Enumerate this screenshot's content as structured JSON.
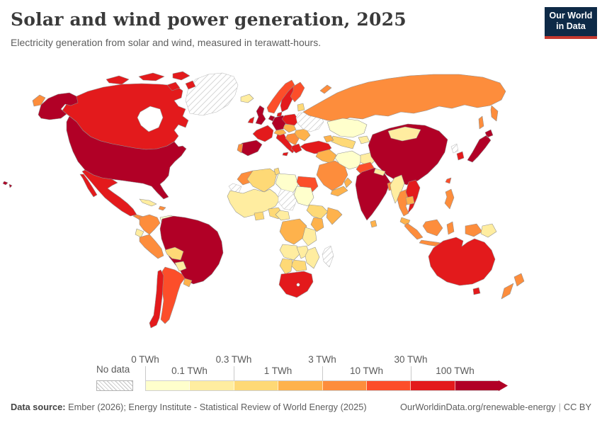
{
  "header": {
    "title": "Solar and wind power generation, 2025",
    "subtitle": "Electricity generation from solar and wind, measured in terawatt-hours."
  },
  "logo": {
    "line1": "Our World",
    "line2": "in Data",
    "bg_color": "#0e2a47",
    "accent_color": "#c5392f"
  },
  "chart_data": {
    "type": "choropleth_map",
    "title": "Solar and wind power generation, 2025",
    "unit": "terawatt-hours (TWh)",
    "legend": {
      "no_data_label": "No data",
      "tick_labels": [
        "0 TWh",
        "0.1 TWh",
        "0.3 TWh",
        "1 TWh",
        "3 TWh",
        "10 TWh",
        "30 TWh",
        "100 TWh"
      ],
      "colors": [
        "#ffffcc",
        "#ffeda0",
        "#fed976",
        "#feb24c",
        "#fd8d3c",
        "#fc4e2a",
        "#e31a1c",
        "#b10026"
      ],
      "bin_ranges": [
        "0-0.1 TWh",
        "0.1-0.3 TWh",
        "0.3-1 TWh",
        "1-3 TWh",
        "3-10 TWh",
        "10-30 TWh",
        "30-100 TWh",
        "100+ TWh"
      ]
    },
    "regions": {
      "greenland": "no_data",
      "canada": 6,
      "canada_arctic_islands": 6,
      "alaska": 7,
      "united_states": 7,
      "hawaii": 7,
      "mexico": 6,
      "central_america": 4,
      "nicaragua": 2,
      "cuba": 1,
      "hispaniola": 4,
      "colombia": 4,
      "venezuela": 0,
      "guyanas": 1,
      "ecuador": 1,
      "peru": 4,
      "brazil": 7,
      "bolivia": 2,
      "paraguay": 1,
      "argentina": 5,
      "chile": 6,
      "uruguay": 3,
      "iceland": 1,
      "united_kingdom": 7,
      "ireland": 6,
      "norway": 5,
      "sweden": 6,
      "finland": 5,
      "denmark": 6,
      "baltics": 2,
      "germany": 7,
      "benelux": 7,
      "france": 6,
      "spain": 7,
      "portugal": 4,
      "italy": 6,
      "sicily": 6,
      "alpine_states": 3,
      "czechia_hungary": 3,
      "poland": 6,
      "balkans": 4,
      "greece": 6,
      "romania_bulgaria": 3,
      "ukraine_belarus": "no_data",
      "turkey": 6,
      "russia": 4,
      "kazakhstan": 0,
      "uzbekistan_turkmenistan": 2,
      "kyrgyzstan_tajikistan": 1,
      "caucasus": 3,
      "syria_iraq": 3,
      "saudi_arabia": 4,
      "yemen": 3,
      "oman": 3,
      "iran": 0,
      "afghanistan": 1,
      "pakistan": 5,
      "china": 7,
      "mongolia": 1,
      "india": 7,
      "nepal": 1,
      "bangladesh": 4,
      "myanmar": 1,
      "thailand": 4,
      "vietnam": 6,
      "laos_cambodia": 3,
      "malaysia": 3,
      "sri_lanka": 3,
      "indonesia": 4,
      "papua_new_guinea": 1,
      "philippines": 4,
      "taiwan": 5,
      "north_korea": "no_data",
      "south_korea": 6,
      "japan": 7,
      "morocco": 4,
      "western_sahara": "no_data",
      "algeria": 2,
      "tunisia": 2,
      "libya": 0,
      "egypt": 5,
      "west_africa": 1,
      "nigeria": 2,
      "ghana_cote_divoire": 2,
      "chad_south_sudan": "no_data",
      "sudan": 0,
      "ethiopia": 2,
      "somalia": 3,
      "kenya": 3,
      "cameroon_car": 1,
      "drc": 3,
      "tanzania": 1,
      "angola": 1,
      "zambia": 1,
      "mozambique": 1,
      "zimbabwe_botswana": 2,
      "namibia": 2,
      "south_africa": 6,
      "madagascar": "no_data",
      "australia": 6,
      "new_zealand": 4
    }
  },
  "footer": {
    "source_label": "Data source:",
    "source_text": " Ember (2026); Energy Institute - Statistical Review of World Energy (2025)",
    "link_text": "OurWorldinData.org/renewable-energy",
    "separator": "|",
    "license_text": "CC BY"
  }
}
